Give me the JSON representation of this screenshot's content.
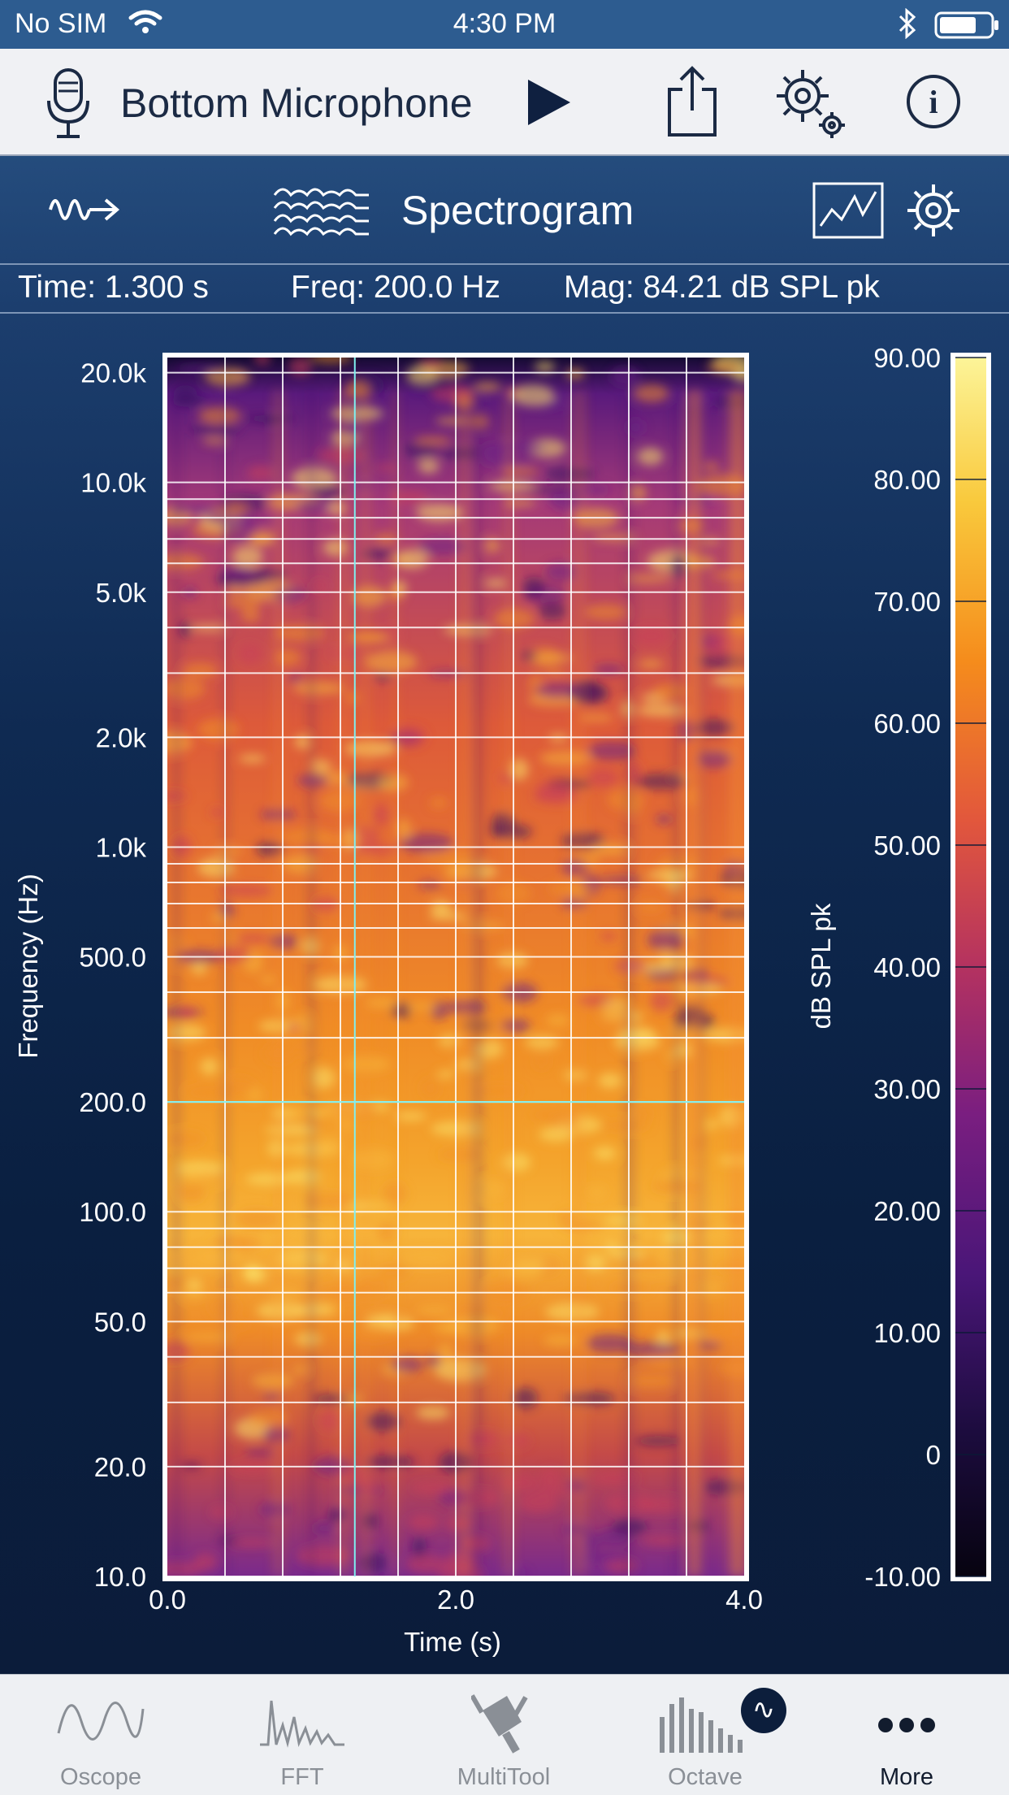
{
  "status_bar": {
    "carrier": "No SIM",
    "time": "4:30 PM"
  },
  "toolbar": {
    "source": "Bottom Microphone"
  },
  "mode": {
    "title": "Spectrogram"
  },
  "readout": {
    "time": "Time: 1.300 s",
    "freq": "Freq: 200.0 Hz",
    "mag": "Mag: 84.21 dB SPL pk"
  },
  "colors": {
    "accent_dark": "#0c1e3c",
    "status_bar": "#2d5c90",
    "cursor": "#7ff0f0",
    "toolbar_bg": "#f0f1f4"
  },
  "icons": [
    "microphone-icon",
    "play-icon",
    "share-icon",
    "settings-gear-icon",
    "info-icon",
    "waveform-arrow-icon",
    "spectrogram-icon",
    "graph-icon",
    "gear-icon",
    "oscope-icon",
    "fft-icon",
    "multitool-icon",
    "octave-icon",
    "more-icon"
  ],
  "chart_data": {
    "type": "heatmap",
    "xlabel": "Time (s)",
    "ylabel": "Frequency (Hz)",
    "xlim": [
      0.0,
      4.0
    ],
    "x_ticks": [
      "0.0",
      "2.0",
      "4.0"
    ],
    "y_scale": "log",
    "ylim": [
      10,
      22000
    ],
    "y_ticks": [
      "20.0k",
      "10.0k",
      "5.0k",
      "2.0k",
      "1.0k",
      "500.0",
      "200.0",
      "100.0",
      "50.0",
      "20.0",
      "10.0"
    ],
    "y_tick_values": [
      20000,
      10000,
      5000,
      2000,
      1000,
      500,
      200,
      100,
      50,
      20,
      10
    ],
    "colorbar": {
      "label": "dB SPL pk",
      "range": [
        -10,
        90
      ],
      "ticks": [
        "90.00",
        "80.00",
        "70.00",
        "60.00",
        "50.00",
        "40.00",
        "30.00",
        "20.00",
        "10.00",
        "0",
        "-10.00"
      ]
    },
    "cursor": {
      "time": 1.3,
      "freq": 200.0
    },
    "grid": true
  },
  "tabs": [
    {
      "label": "Oscope"
    },
    {
      "label": "FFT"
    },
    {
      "label": "MultiTool"
    },
    {
      "label": "Octave",
      "badge": "∿"
    },
    {
      "label": "More"
    }
  ]
}
